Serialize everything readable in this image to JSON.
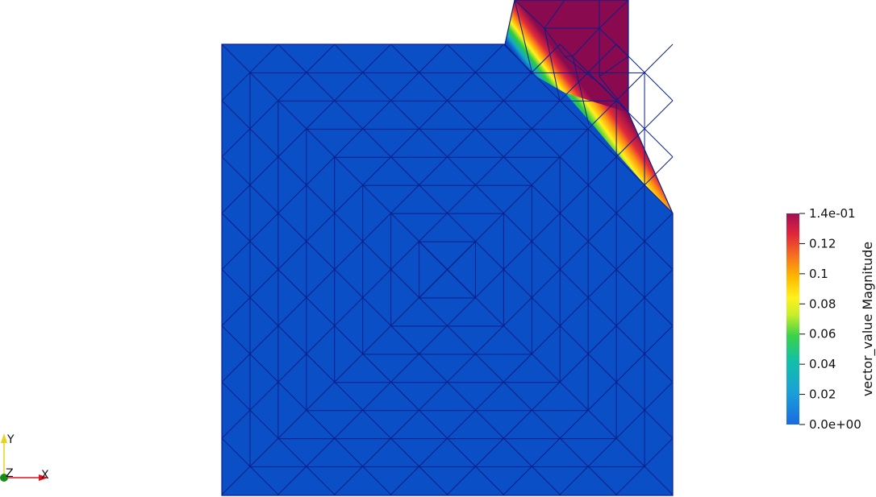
{
  "colorbar": {
    "title": "vector_value Magnitude",
    "ticks": [
      {
        "value": 0.14,
        "label": "1.4e-01"
      },
      {
        "value": 0.12,
        "label": "0.12"
      },
      {
        "value": 0.1,
        "label": "0.1"
      },
      {
        "value": 0.08,
        "label": "0.08"
      },
      {
        "value": 0.06,
        "label": "0.06"
      },
      {
        "value": 0.04,
        "label": "0.04"
      },
      {
        "value": 0.02,
        "label": "0.02"
      },
      {
        "value": 0.0,
        "label": "0.0e+00"
      }
    ],
    "range": [
      0,
      0.14
    ],
    "colors": [
      "#1f4fc2",
      "#1789d6",
      "#0eb8a0",
      "#2ecc40",
      "#a8e62b",
      "#fff21c",
      "#ffb000",
      "#f06a1d",
      "#e02a3a",
      "#8a0a4f"
    ]
  },
  "mesh": {
    "fill_color": "#0b4fc7",
    "edge_color": "#0a1f8a",
    "high_color": "#8a0a4f"
  },
  "axes_triad": {
    "y_label": "Y",
    "z_label": "Z",
    "x_label": "X",
    "x_color": "#e0141e",
    "y_color": "#e8d21a",
    "z_color": "#1a8a1a"
  }
}
